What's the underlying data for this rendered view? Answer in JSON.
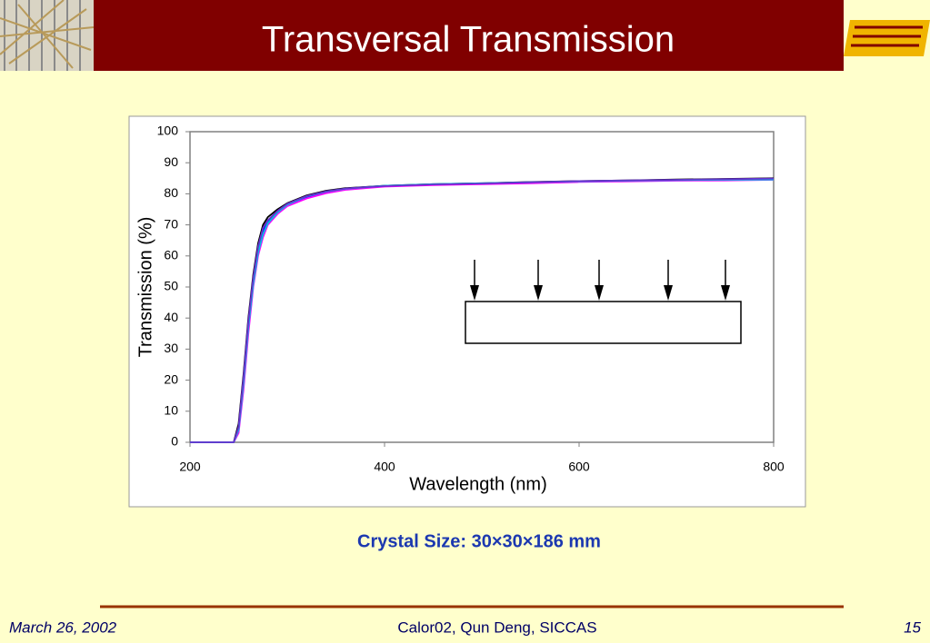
{
  "header": {
    "title": "Transversal Transmission"
  },
  "chart_data": {
    "type": "line",
    "x": [
      200,
      220,
      240,
      245,
      250,
      255,
      260,
      265,
      270,
      275,
      280,
      290,
      300,
      320,
      340,
      360,
      380,
      400,
      450,
      500,
      550,
      600,
      650,
      700,
      750,
      800
    ],
    "series": [
      {
        "color": "#0000ff",
        "values": [
          0,
          0,
          0,
          0,
          5,
          20,
          38,
          52,
          62,
          68,
          71,
          74,
          76.5,
          79,
          80.5,
          81.5,
          82,
          82.5,
          83,
          83.3,
          83.6,
          84,
          84.2,
          84.4,
          84.6,
          84.8
        ]
      },
      {
        "color": "#000000",
        "values": [
          0,
          0,
          0,
          0,
          6,
          22,
          40,
          54,
          64,
          70,
          72.5,
          75,
          77,
          79.5,
          81,
          81.8,
          82.2,
          82.6,
          83.1,
          83.4,
          83.8,
          84.1,
          84.3,
          84.6,
          84.8,
          85
        ]
      },
      {
        "color": "#ff00ff",
        "values": [
          0,
          0,
          0,
          0,
          3,
          17,
          35,
          50,
          60,
          66,
          70,
          73.5,
          76,
          78.5,
          80.2,
          81.3,
          81.8,
          82.3,
          82.8,
          83.1,
          83.4,
          83.8,
          84,
          84.2,
          84.3,
          84.5
        ]
      },
      {
        "color": "#00c0e0",
        "values": [
          0,
          0,
          0,
          0,
          4,
          19,
          37,
          51,
          61,
          67,
          70.5,
          74,
          76.5,
          79.2,
          80.7,
          81.6,
          82.1,
          82.6,
          83.1,
          83.4,
          83.7,
          84,
          84.2,
          84.4,
          84.5,
          84.6
        ]
      },
      {
        "color": "#6633cc",
        "values": [
          0,
          0,
          0,
          0,
          5,
          21,
          39,
          53,
          63,
          69,
          71.5,
          74.5,
          76.8,
          79.3,
          80.8,
          81.7,
          82.1,
          82.5,
          83,
          83.3,
          83.7,
          84.1,
          84.3,
          84.5,
          84.7,
          84.9
        ]
      }
    ],
    "xlabel": "Wavelength (nm)",
    "ylabel": "Transmission (%)",
    "xlim": [
      200,
      800
    ],
    "xticks": [
      200,
      400,
      600,
      800
    ],
    "ylim": [
      0,
      100
    ],
    "yticks": [
      0,
      10,
      20,
      30,
      40,
      50,
      60,
      70,
      80,
      90,
      100
    ]
  },
  "caption": "Crystal Size: 30×30×186 mm",
  "footer": {
    "date": "March 26, 2002",
    "center": "Calor02, Qun Deng, SICCAS",
    "page": "15"
  }
}
